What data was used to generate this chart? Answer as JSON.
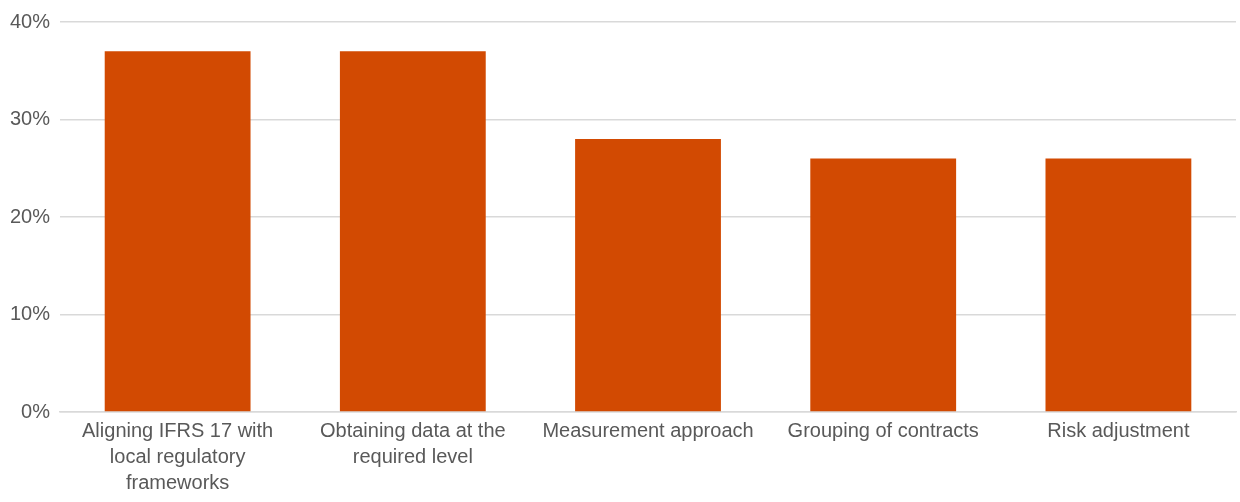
{
  "chart_data": {
    "type": "bar",
    "categories": [
      "Aligning IFRS 17 with local regulatory frameworks",
      "Obtaining data at the required level",
      "Measurement approach",
      "Grouping of contracts",
      "Risk adjustment"
    ],
    "values": [
      37,
      37,
      28,
      26,
      26
    ],
    "color": "#d24a02",
    "ylim": [
      0,
      40
    ],
    "yticks": [
      {
        "value": 0,
        "label": "0%"
      },
      {
        "value": 10,
        "label": "10%"
      },
      {
        "value": 20,
        "label": "20%"
      },
      {
        "value": 30,
        "label": "30%"
      },
      {
        "value": 40,
        "label": "40%"
      }
    ],
    "grid": "y",
    "legend": false
  }
}
